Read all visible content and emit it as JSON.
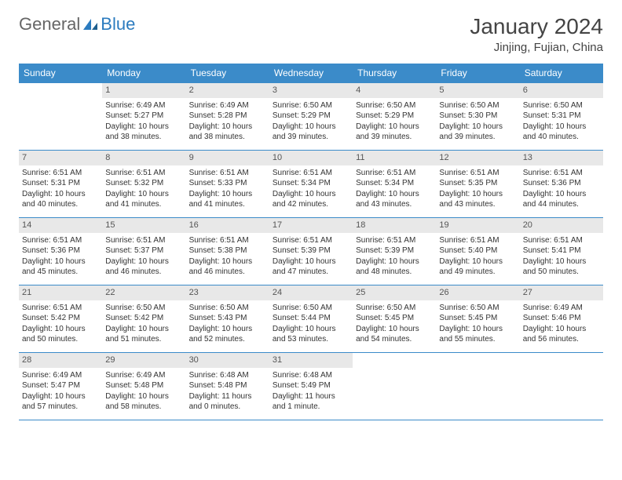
{
  "logo": {
    "text1": "General",
    "text2": "Blue"
  },
  "title": "January 2024",
  "location": "Jinjing, Fujian, China",
  "colors": {
    "header_bg": "#3b8bc9",
    "header_text": "#ffffff",
    "daynum_bg": "#e8e8e8",
    "border": "#3b8bc9",
    "logo_blue": "#2b7bbf",
    "text": "#333333"
  },
  "day_headers": [
    "Sunday",
    "Monday",
    "Tuesday",
    "Wednesday",
    "Thursday",
    "Friday",
    "Saturday"
  ],
  "weeks": [
    [
      {
        "n": "",
        "sr": "",
        "ss": "",
        "dl": ""
      },
      {
        "n": "1",
        "sr": "Sunrise: 6:49 AM",
        "ss": "Sunset: 5:27 PM",
        "dl": "Daylight: 10 hours and 38 minutes."
      },
      {
        "n": "2",
        "sr": "Sunrise: 6:49 AM",
        "ss": "Sunset: 5:28 PM",
        "dl": "Daylight: 10 hours and 38 minutes."
      },
      {
        "n": "3",
        "sr": "Sunrise: 6:50 AM",
        "ss": "Sunset: 5:29 PM",
        "dl": "Daylight: 10 hours and 39 minutes."
      },
      {
        "n": "4",
        "sr": "Sunrise: 6:50 AM",
        "ss": "Sunset: 5:29 PM",
        "dl": "Daylight: 10 hours and 39 minutes."
      },
      {
        "n": "5",
        "sr": "Sunrise: 6:50 AM",
        "ss": "Sunset: 5:30 PM",
        "dl": "Daylight: 10 hours and 39 minutes."
      },
      {
        "n": "6",
        "sr": "Sunrise: 6:50 AM",
        "ss": "Sunset: 5:31 PM",
        "dl": "Daylight: 10 hours and 40 minutes."
      }
    ],
    [
      {
        "n": "7",
        "sr": "Sunrise: 6:51 AM",
        "ss": "Sunset: 5:31 PM",
        "dl": "Daylight: 10 hours and 40 minutes."
      },
      {
        "n": "8",
        "sr": "Sunrise: 6:51 AM",
        "ss": "Sunset: 5:32 PM",
        "dl": "Daylight: 10 hours and 41 minutes."
      },
      {
        "n": "9",
        "sr": "Sunrise: 6:51 AM",
        "ss": "Sunset: 5:33 PM",
        "dl": "Daylight: 10 hours and 41 minutes."
      },
      {
        "n": "10",
        "sr": "Sunrise: 6:51 AM",
        "ss": "Sunset: 5:34 PM",
        "dl": "Daylight: 10 hours and 42 minutes."
      },
      {
        "n": "11",
        "sr": "Sunrise: 6:51 AM",
        "ss": "Sunset: 5:34 PM",
        "dl": "Daylight: 10 hours and 43 minutes."
      },
      {
        "n": "12",
        "sr": "Sunrise: 6:51 AM",
        "ss": "Sunset: 5:35 PM",
        "dl": "Daylight: 10 hours and 43 minutes."
      },
      {
        "n": "13",
        "sr": "Sunrise: 6:51 AM",
        "ss": "Sunset: 5:36 PM",
        "dl": "Daylight: 10 hours and 44 minutes."
      }
    ],
    [
      {
        "n": "14",
        "sr": "Sunrise: 6:51 AM",
        "ss": "Sunset: 5:36 PM",
        "dl": "Daylight: 10 hours and 45 minutes."
      },
      {
        "n": "15",
        "sr": "Sunrise: 6:51 AM",
        "ss": "Sunset: 5:37 PM",
        "dl": "Daylight: 10 hours and 46 minutes."
      },
      {
        "n": "16",
        "sr": "Sunrise: 6:51 AM",
        "ss": "Sunset: 5:38 PM",
        "dl": "Daylight: 10 hours and 46 minutes."
      },
      {
        "n": "17",
        "sr": "Sunrise: 6:51 AM",
        "ss": "Sunset: 5:39 PM",
        "dl": "Daylight: 10 hours and 47 minutes."
      },
      {
        "n": "18",
        "sr": "Sunrise: 6:51 AM",
        "ss": "Sunset: 5:39 PM",
        "dl": "Daylight: 10 hours and 48 minutes."
      },
      {
        "n": "19",
        "sr": "Sunrise: 6:51 AM",
        "ss": "Sunset: 5:40 PM",
        "dl": "Daylight: 10 hours and 49 minutes."
      },
      {
        "n": "20",
        "sr": "Sunrise: 6:51 AM",
        "ss": "Sunset: 5:41 PM",
        "dl": "Daylight: 10 hours and 50 minutes."
      }
    ],
    [
      {
        "n": "21",
        "sr": "Sunrise: 6:51 AM",
        "ss": "Sunset: 5:42 PM",
        "dl": "Daylight: 10 hours and 50 minutes."
      },
      {
        "n": "22",
        "sr": "Sunrise: 6:50 AM",
        "ss": "Sunset: 5:42 PM",
        "dl": "Daylight: 10 hours and 51 minutes."
      },
      {
        "n": "23",
        "sr": "Sunrise: 6:50 AM",
        "ss": "Sunset: 5:43 PM",
        "dl": "Daylight: 10 hours and 52 minutes."
      },
      {
        "n": "24",
        "sr": "Sunrise: 6:50 AM",
        "ss": "Sunset: 5:44 PM",
        "dl": "Daylight: 10 hours and 53 minutes."
      },
      {
        "n": "25",
        "sr": "Sunrise: 6:50 AM",
        "ss": "Sunset: 5:45 PM",
        "dl": "Daylight: 10 hours and 54 minutes."
      },
      {
        "n": "26",
        "sr": "Sunrise: 6:50 AM",
        "ss": "Sunset: 5:45 PM",
        "dl": "Daylight: 10 hours and 55 minutes."
      },
      {
        "n": "27",
        "sr": "Sunrise: 6:49 AM",
        "ss": "Sunset: 5:46 PM",
        "dl": "Daylight: 10 hours and 56 minutes."
      }
    ],
    [
      {
        "n": "28",
        "sr": "Sunrise: 6:49 AM",
        "ss": "Sunset: 5:47 PM",
        "dl": "Daylight: 10 hours and 57 minutes."
      },
      {
        "n": "29",
        "sr": "Sunrise: 6:49 AM",
        "ss": "Sunset: 5:48 PM",
        "dl": "Daylight: 10 hours and 58 minutes."
      },
      {
        "n": "30",
        "sr": "Sunrise: 6:48 AM",
        "ss": "Sunset: 5:48 PM",
        "dl": "Daylight: 11 hours and 0 minutes."
      },
      {
        "n": "31",
        "sr": "Sunrise: 6:48 AM",
        "ss": "Sunset: 5:49 PM",
        "dl": "Daylight: 11 hours and 1 minute."
      },
      {
        "n": "",
        "sr": "",
        "ss": "",
        "dl": ""
      },
      {
        "n": "",
        "sr": "",
        "ss": "",
        "dl": ""
      },
      {
        "n": "",
        "sr": "",
        "ss": "",
        "dl": ""
      }
    ]
  ]
}
